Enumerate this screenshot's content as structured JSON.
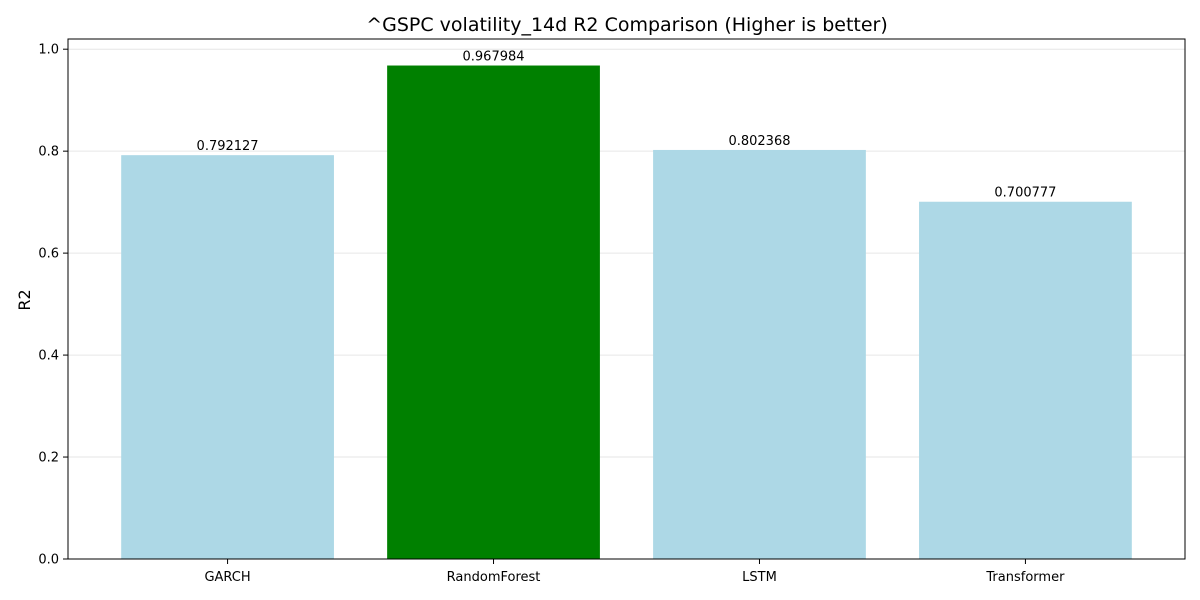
{
  "chart_data": {
    "type": "bar",
    "title": "^GSPC volatility_14d R2 Comparison (Higher is better)",
    "xlabel": "",
    "ylabel": "R2",
    "categories": [
      "GARCH",
      "RandomForest",
      "LSTM",
      "Transformer"
    ],
    "values": [
      0.792127,
      0.967984,
      0.802368,
      0.700777
    ],
    "value_labels": [
      "0.792127",
      "0.967984",
      "0.802368",
      "0.700777"
    ],
    "bar_colors": [
      "#add8e6",
      "#008000",
      "#add8e6",
      "#add8e6"
    ],
    "ylim": [
      0,
      1.02
    ],
    "yticks": [
      0.0,
      0.2,
      0.4,
      0.6,
      0.8,
      1.0
    ],
    "ytick_labels": [
      "0.0",
      "0.2",
      "0.4",
      "0.6",
      "0.8",
      "1.0"
    ],
    "grid": true,
    "grid_axis": "y",
    "highlight_color": "#008000",
    "default_bar_color": "#add8e6"
  }
}
